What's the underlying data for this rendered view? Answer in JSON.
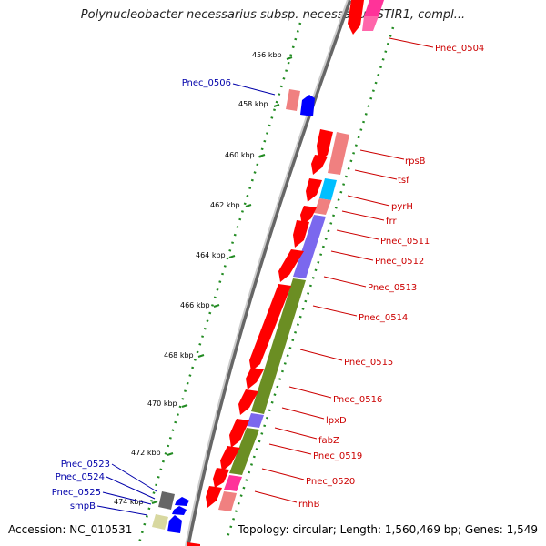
{
  "title": "Polynucleobacter necessarius subsp. necessarius STIR1, compl...",
  "accession_text": "Accession: NC_010531",
  "stats_text": "Topology: circular; Length: 1,560,469 bp; Genes: 1,549",
  "colors": {
    "forward_gene": "#ff0000",
    "reverse_gene": "#0000ff",
    "label_red": "#cc0000",
    "label_blue": "#0000aa",
    "cog_translation": "#f08080",
    "cog_nucleotide": "#00ccff",
    "cog_purple": "#7b68ee",
    "cog_olive": "#6b8e23",
    "cog_pink": "#ff3399",
    "cog_gray": "#666666",
    "cog_khaki": "#d8d8a0",
    "backbone": "#999999",
    "tick": "#228b22"
  },
  "ticks": [
    "456 kbp",
    "458 kbp",
    "460 kbp",
    "462 kbp",
    "464 kbp",
    "466 kbp",
    "468 kbp",
    "470 kbp",
    "472 kbp",
    "474 kbp"
  ],
  "genes_right": [
    "Pnec_0504",
    "rpsB",
    "tsf",
    "pyrH",
    "frr",
    "Pnec_0511",
    "Pnec_0512",
    "Pnec_0513",
    "Pnec_0514",
    "Pnec_0515",
    "Pnec_0516",
    "lpxD",
    "fabZ",
    "Pnec_0519",
    "Pnec_0520",
    "rnhB"
  ],
  "genes_left": [
    "Pnec_0506",
    "Pnec_0523",
    "Pnec_0524",
    "Pnec_0525",
    "smpB"
  ]
}
